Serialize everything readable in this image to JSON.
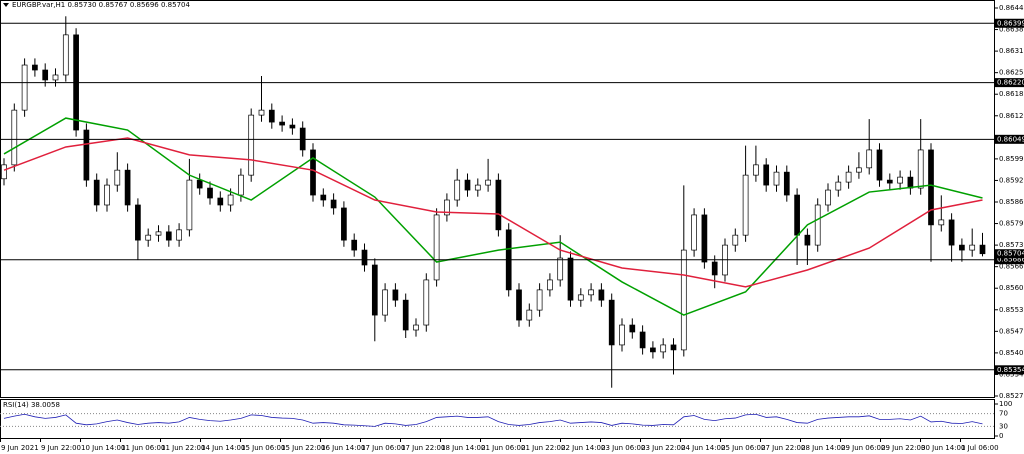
{
  "chart_data": {
    "type": "candlestick",
    "header": "EURGBP.var,H1  0.85730 0.85767 0.85696 0.85704",
    "ylim": [
      0.85275,
      0.86445
    ],
    "yticks": [
      0.86445,
      {
        "value": 0.8638,
        "label": "0.86380"
      },
      0.86315,
      {
        "value": 0.8625,
        "label": "0.86250"
      },
      0.86185,
      {
        "value": 0.8612,
        "label": "0.86120"
      },
      {
        "value": 0.8599,
        "label": "0.85990"
      },
      0.85925,
      {
        "value": 0.8586,
        "label": "0.85860"
      },
      0.85795,
      {
        "value": 0.8573,
        "label": "0.85730"
      },
      0.85665,
      {
        "value": 0.856,
        "label": "0.85600"
      },
      0.85535,
      {
        "value": 0.8547,
        "label": "0.85470"
      },
      0.85405,
      {
        "value": 0.8534,
        "label": "0.85340"
      },
      0.85275
    ],
    "levels": [
      0.86399,
      {
        "value": 0.8622,
        "label": "0.86220"
      },
      0.86049,
      0.85686,
      0.85354
    ],
    "colors": {
      "up": "#ffffff",
      "down": "#000000",
      "outline": "#000000"
    },
    "candles": {
      "open": [
        0.8593,
        0.85972,
        0.86137,
        0.86273,
        0.86258,
        0.86228,
        0.86243,
        0.86364,
        0.86077,
        0.85926,
        0.85851,
        0.85911,
        0.85956,
        0.85851,
        0.85745,
        0.8576,
        0.8577,
        0.85745,
        0.85776,
        0.85926,
        0.85902,
        0.85872,
        0.85851,
        0.85881,
        0.85941,
        0.86122,
        0.86137,
        0.86101,
        0.86092,
        0.86083,
        0.86017,
        0.85881,
        0.85866,
        0.85842,
        0.85745,
        0.85715,
        0.8567,
        0.85519,
        0.85595,
        0.85564,
        0.85474,
        0.85489,
        0.85625,
        0.85821,
        0.85866,
        0.85926,
        0.85896,
        0.85911,
        0.85926,
        0.85776,
        0.85595,
        0.85504,
        0.85534,
        0.85595,
        0.85625,
        0.85691,
        0.85564,
        0.8558,
        0.85595,
        0.85564,
        0.85429,
        0.85489,
        0.85468,
        0.8542,
        0.85408,
        0.85429,
        0.85414,
        0.85715,
        0.85821,
        0.85679,
        0.8564,
        0.8573,
        0.8576,
        0.85941,
        0.85972,
        0.85911,
        0.8595,
        0.85881,
        0.8576,
        0.8573,
        0.85851,
        0.85896,
        0.8592,
        0.8595,
        0.85963,
        0.86017,
        0.85926,
        0.85917,
        0.85935,
        0.85902,
        0.86017,
        0.85791,
        0.85806,
        0.8573,
        0.85715,
        0.8573
      ],
      "high": [
        0.85992,
        0.86157,
        0.86293,
        0.86293,
        0.86278,
        0.86263,
        0.8642,
        0.86384,
        0.86097,
        0.85946,
        0.85931,
        0.8601,
        0.85976,
        0.85871,
        0.8578,
        0.8579,
        0.8579,
        0.85796,
        0.8599,
        0.85946,
        0.85922,
        0.85892,
        0.85901,
        0.85961,
        0.86142,
        0.8624,
        0.86157,
        0.86121,
        0.86112,
        0.86103,
        0.86037,
        0.85901,
        0.85886,
        0.85862,
        0.85765,
        0.85735,
        0.8569,
        0.85615,
        0.85615,
        0.85584,
        0.85509,
        0.85645,
        0.85841,
        0.85886,
        0.8596,
        0.85946,
        0.85931,
        0.8599,
        0.85946,
        0.85796,
        0.85615,
        0.85554,
        0.85615,
        0.85645,
        0.8576,
        0.85711,
        0.856,
        0.85615,
        0.85615,
        0.85584,
        0.85509,
        0.85509,
        0.85488,
        0.8544,
        0.85449,
        0.85449,
        0.8591,
        0.85841,
        0.85841,
        0.85699,
        0.8575,
        0.8578,
        0.8603,
        0.8603,
        0.85992,
        0.8597,
        0.8597,
        0.85901,
        0.8578,
        0.85871,
        0.85916,
        0.8594,
        0.8597,
        0.8601,
        0.8611,
        0.86037,
        0.85946,
        0.85955,
        0.85955,
        0.8611,
        0.86037,
        0.8588,
        0.85826,
        0.8575,
        0.8578,
        0.85767
      ],
      "low": [
        0.8591,
        0.85952,
        0.86117,
        0.86238,
        0.86208,
        0.86208,
        0.86223,
        0.86057,
        0.85906,
        0.85831,
        0.85831,
        0.85891,
        0.85831,
        0.85685,
        0.85725,
        0.8574,
        0.85725,
        0.85725,
        0.85756,
        0.85882,
        0.85852,
        0.85831,
        0.85831,
        0.85861,
        0.85921,
        0.86102,
        0.86081,
        0.86072,
        0.86063,
        0.85997,
        0.85861,
        0.85846,
        0.85822,
        0.85725,
        0.85695,
        0.8565,
        0.8544,
        0.85499,
        0.85544,
        0.8545,
        0.85454,
        0.85469,
        0.85605,
        0.85801,
        0.85846,
        0.85876,
        0.85876,
        0.85891,
        0.85756,
        0.85575,
        0.85484,
        0.85484,
        0.85514,
        0.85575,
        0.85605,
        0.85544,
        0.85544,
        0.8556,
        0.85544,
        0.853,
        0.85409,
        0.85448,
        0.854,
        0.85388,
        0.85388,
        0.8534,
        0.85394,
        0.85695,
        0.85659,
        0.856,
        0.8562,
        0.8571,
        0.8574,
        0.85921,
        0.85891,
        0.85891,
        0.85861,
        0.8567,
        0.8567,
        0.8571,
        0.85831,
        0.85876,
        0.859,
        0.8593,
        0.85943,
        0.85906,
        0.85897,
        0.85897,
        0.85882,
        0.85882,
        0.8568,
        0.85771,
        0.8568,
        0.8568,
        0.85695,
        0.85696
      ],
      "close": [
        0.85972,
        0.86137,
        0.86273,
        0.86258,
        0.86228,
        0.86243,
        0.86364,
        0.86077,
        0.85926,
        0.85851,
        0.85911,
        0.85956,
        0.85851,
        0.85745,
        0.8576,
        0.8577,
        0.85745,
        0.85776,
        0.85926,
        0.85902,
        0.85872,
        0.85851,
        0.85881,
        0.85941,
        0.86122,
        0.86137,
        0.86101,
        0.86092,
        0.86083,
        0.86017,
        0.85881,
        0.85866,
        0.85842,
        0.85745,
        0.85715,
        0.8567,
        0.85519,
        0.85595,
        0.85564,
        0.85474,
        0.85489,
        0.85625,
        0.85821,
        0.85866,
        0.85926,
        0.85896,
        0.85911,
        0.85926,
        0.85776,
        0.85595,
        0.85504,
        0.85534,
        0.85595,
        0.85625,
        0.85691,
        0.85564,
        0.8558,
        0.85595,
        0.85564,
        0.85429,
        0.85489,
        0.85468,
        0.8542,
        0.85408,
        0.85429,
        0.85414,
        0.85715,
        0.85821,
        0.85679,
        0.8564,
        0.8573,
        0.8576,
        0.85941,
        0.85972,
        0.85911,
        0.8595,
        0.85881,
        0.8576,
        0.8573,
        0.85851,
        0.85896,
        0.8592,
        0.8595,
        0.85963,
        0.86017,
        0.85926,
        0.85917,
        0.85935,
        0.85902,
        0.86017,
        0.85791,
        0.85806,
        0.8573,
        0.85715,
        0.8573,
        0.85704
      ]
    },
    "overlays": [
      {
        "color": "#00a000",
        "x": [
          0,
          6,
          12,
          18,
          24,
          30,
          36,
          42,
          48,
          54,
          60,
          66,
          72,
          78,
          84,
          90,
          95
        ],
        "values": [
          0.86005,
          0.86113,
          0.86077,
          0.85941,
          0.85866,
          0.85993,
          0.85875,
          0.85679,
          0.85715,
          0.85739,
          0.85619,
          0.85519,
          0.85589,
          0.85791,
          0.8589,
          0.85911,
          0.85872
        ]
      },
      {
        "color": "#e0203c",
        "x": [
          0,
          6,
          12,
          18,
          24,
          30,
          36,
          42,
          48,
          54,
          60,
          66,
          72,
          78,
          84,
          90,
          95
        ],
        "values": [
          0.85956,
          0.86026,
          0.86053,
          0.86002,
          0.85987,
          0.85956,
          0.85866,
          0.8583,
          0.85824,
          0.85715,
          0.85661,
          0.8564,
          0.85604,
          0.85655,
          0.85721,
          0.85836,
          0.85866
        ]
      }
    ],
    "rsi": {
      "label": "RSI(14) 38.0058",
      "color": "#1e1eb4",
      "ylim": [
        0,
        100
      ],
      "yticks": [
        100,
        70,
        30,
        0
      ],
      "values": [
        55,
        62,
        68,
        60,
        55,
        58,
        66,
        40,
        35,
        38,
        45,
        50,
        42,
        36,
        40,
        42,
        40,
        44,
        58,
        52,
        48,
        46,
        50,
        55,
        66,
        64,
        58,
        56,
        55,
        50,
        40,
        42,
        40,
        35,
        34,
        32,
        30,
        40,
        38,
        33,
        36,
        45,
        58,
        60,
        62,
        58,
        58,
        60,
        45,
        36,
        33,
        36,
        42,
        45,
        50,
        40,
        42,
        44,
        42,
        33,
        40,
        38,
        34,
        33,
        36,
        35,
        60,
        64,
        52,
        48,
        54,
        56,
        66,
        68,
        58,
        60,
        52,
        42,
        40,
        52,
        56,
        58,
        60,
        60,
        63,
        52,
        52,
        54,
        50,
        62,
        44,
        46,
        40,
        39,
        45,
        38.0058
      ]
    },
    "categories": [
      "9 Jun 2021",
      "9 Jun 22:00",
      "10 Jun 14:00",
      "11 Jun 06:00",
      "11 Jun 22:00",
      "14 Jun 14:00",
      "15 Jun 06:00",
      "15 Jun 22:00",
      "16 Jun 14:00",
      "17 Jun 06:00",
      "17 Jun 22:00",
      "18 Jun 14:00",
      "21 Jun 06:00",
      "21 Jun 22:00",
      "22 Jun 14:00",
      "23 Jun 06:00",
      "23 Jun 22:00",
      "24 Jun 14:00",
      "25 Jun 06:00",
      "27 Jun 22:00",
      "28 Jun 14:00",
      "29 Jun 06:00",
      "29 Jun 22:00",
      "30 Jun 14:00",
      "1 Jul 06:00"
    ]
  }
}
